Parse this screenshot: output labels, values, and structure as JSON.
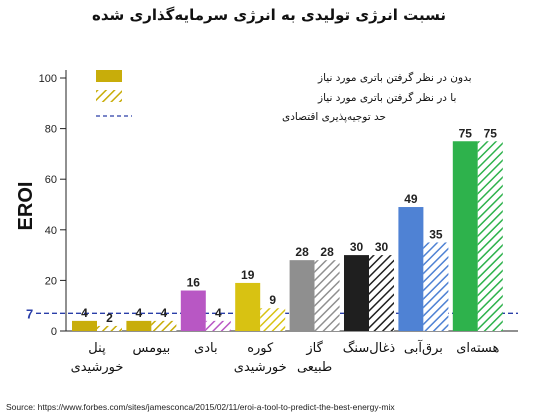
{
  "chart_data": {
    "type": "bar",
    "title": "نسبت انرژی تولیدی به انرژی سرمایه‌گذاری شده",
    "ylabel": "EROI",
    "xlabel": "",
    "ylim": [
      0,
      100
    ],
    "yticks": [
      0,
      20,
      40,
      60,
      80,
      100
    ],
    "grid": false,
    "legend_position": "top-left",
    "categories": [
      [
        "پنل",
        "خورشیدی"
      ],
      [
        "بیومس"
      ],
      [
        "بادی"
      ],
      [
        "کوره",
        "خورشیدی"
      ],
      [
        "گاز",
        "طبیعی"
      ],
      [
        "ذغال‌سنگ"
      ],
      [
        "برق‌آبی"
      ],
      [
        "هسته‌ای"
      ]
    ],
    "series": [
      {
        "name": "بدون در نظر گرفتن باتری مورد نیاز",
        "values": [
          4,
          4,
          16,
          19,
          28,
          30,
          49,
          75
        ],
        "style": "solid"
      },
      {
        "name": "با در نظر گرفتن باتری مورد نیاز",
        "values": [
          2,
          4,
          4,
          9,
          28,
          30,
          35,
          75
        ],
        "style": "hatched"
      }
    ],
    "category_colors": [
      "#c8ad0a",
      "#c8ad0a",
      "#b857c4",
      "#d8c212",
      "#8f8f8f",
      "#1f1f1f",
      "#4f82d4",
      "#2eb24c"
    ],
    "threshold": {
      "value": 7,
      "label": "حد توجیه‌پذیری اقتصادی",
      "color": "#2a3ea8"
    },
    "source": "Source: https://www.forbes.com/sites/jamesconca/2015/02/11/eroi-a-tool-to-predict-the-best-energy-mix"
  }
}
